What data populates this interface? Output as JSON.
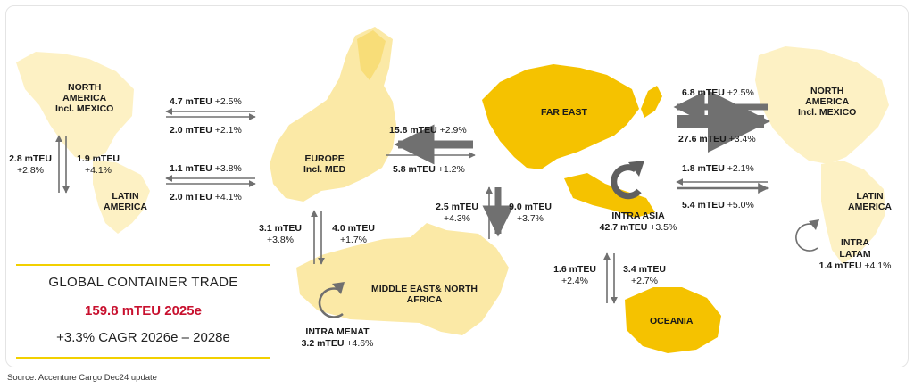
{
  "source": "Source: Accenture Cargo Dec24 update",
  "summary": {
    "title": "GLOBAL CONTAINER TRADE",
    "total": "159.8 mTEU 2025e",
    "cagr": "+3.3% CAGR 2026e – 2028e"
  },
  "regions": {
    "na_left": [
      "NORTH",
      "AMERICA",
      "Incl. MEXICO"
    ],
    "la_left": [
      "LATIN",
      "AMERICA"
    ],
    "europe": [
      "EUROPE",
      "Incl. MED"
    ],
    "far_east": "FAR EAST",
    "mena": [
      "MIDDLE EAST& NORTH",
      "AFRICA"
    ],
    "na_right": [
      "NORTH",
      "AMERICA",
      "Incl. MEXICO"
    ],
    "la_right": [
      "LATIN",
      "AMERICA"
    ],
    "oceania": "OCEANIA"
  },
  "flows": {
    "na_eu_top": {
      "value": "4.7 mTEU",
      "growth": "+2.5%"
    },
    "na_eu_bottom": {
      "value": "2.0 mTEU",
      "growth": "+2.1%"
    },
    "la_eu_top": {
      "value": "1.1 mTEU",
      "growth": "+3.8%"
    },
    "la_eu_bottom": {
      "value": "2.0 mTEU",
      "growth": "+4.1%"
    },
    "na_la_up": {
      "value": "2.8 mTEU",
      "growth": "+2.8%"
    },
    "na_la_down": {
      "value": "1.9 mTEU",
      "growth": "+4.1%"
    },
    "eu_fe_top": {
      "value": "15.8 mTEU",
      "growth": "+2.9%"
    },
    "eu_fe_bottom": {
      "value": "5.8 mTEU",
      "growth": "+1.2%"
    },
    "eu_mena_up": {
      "value": "3.1 mTEU",
      "growth": "+3.8%"
    },
    "eu_mena_down": {
      "value": "4.0 mTEU",
      "growth": "+1.7%"
    },
    "fe_mena_up": {
      "value": "2.5 mTEU",
      "growth": "+4.3%"
    },
    "fe_mena_down": {
      "value": "9.0 mTEU",
      "growth": "+3.7%"
    },
    "fe_na_top": {
      "value": "6.8 mTEU",
      "growth": "+2.5%"
    },
    "fe_na_bottom": {
      "value": "27.6 mTEU",
      "growth": "+3.4%"
    },
    "fe_la_top": {
      "value": "1.8 mTEU",
      "growth": "+2.1%"
    },
    "fe_la_bottom": {
      "value": "5.4 mTEU",
      "growth": "+5.0%"
    },
    "fe_oc_up": {
      "value": "1.6 mTEU",
      "growth": "+2.4%"
    },
    "fe_oc_down": {
      "value": "3.4 mTEU",
      "growth": "+2.7%"
    }
  },
  "intra": {
    "asia": {
      "name": "INTRA ASIA",
      "value": "42.7 mTEU",
      "growth": "+3.5%"
    },
    "latam": {
      "name": [
        "INTRA",
        "LATAM"
      ],
      "value": "1.4 mTEU",
      "growth": "+4.1%"
    },
    "menat": {
      "name": "INTRA MENAT",
      "value": "3.2 mTEU",
      "growth": "+4.6%"
    }
  },
  "colors": {
    "land_light": "#fbe9a6",
    "land_mid": "#f8dd78",
    "land_dark": "#f5c200",
    "arrow": "#707070",
    "accent_line": "#f2d000",
    "highlight": "#c8102e"
  }
}
